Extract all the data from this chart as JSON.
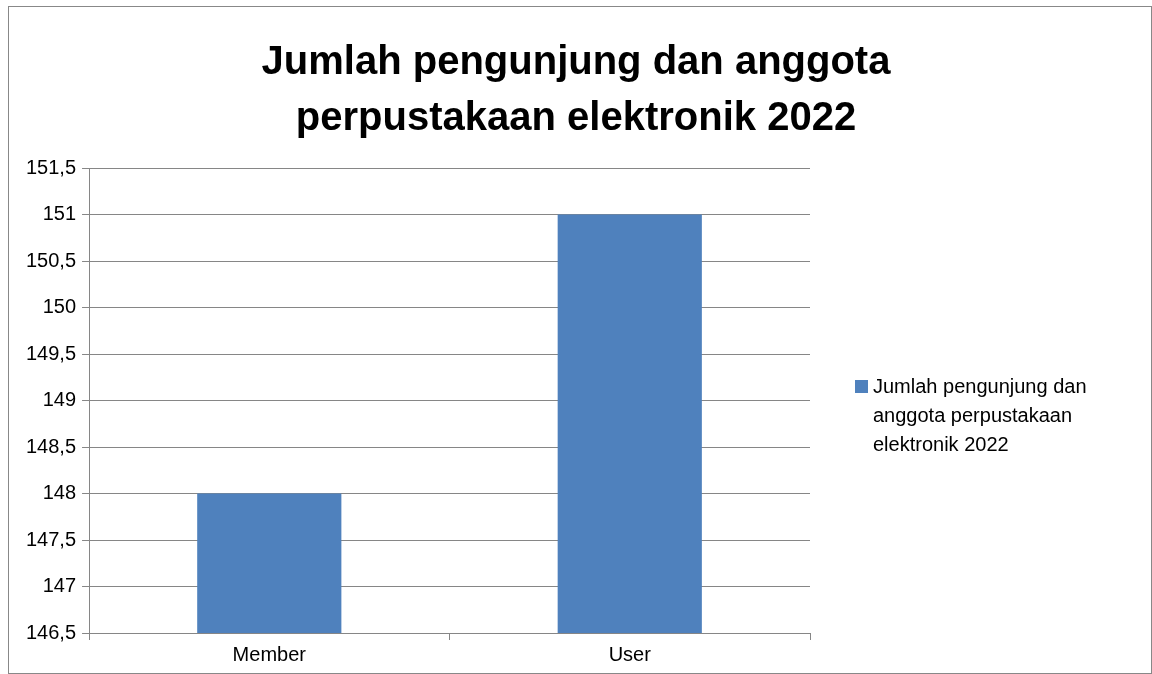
{
  "chart_data": {
    "type": "bar",
    "title": "Jumlah pengunjung dan anggota perpustakaan elektronik 2022",
    "categories": [
      "Member",
      "User"
    ],
    "series": [
      {
        "name": "Jumlah pengunjung dan anggota perpustakaan elektronik 2022",
        "color": "#4f81bd",
        "values": [
          148,
          151
        ]
      }
    ],
    "ylim": [
      146.5,
      151.5
    ],
    "yticks": [
      {
        "value": 146.5,
        "label": "146,5"
      },
      147,
      {
        "value": 147.5,
        "label": "147,5"
      },
      148,
      {
        "value": 148.5,
        "label": "148,5"
      },
      149,
      {
        "value": 149.5,
        "label": "149,5"
      },
      150,
      {
        "value": 150.5,
        "label": "150,5"
      },
      151,
      {
        "value": 151.5,
        "label": "151,5"
      }
    ],
    "grid": "y",
    "legend": "right"
  }
}
